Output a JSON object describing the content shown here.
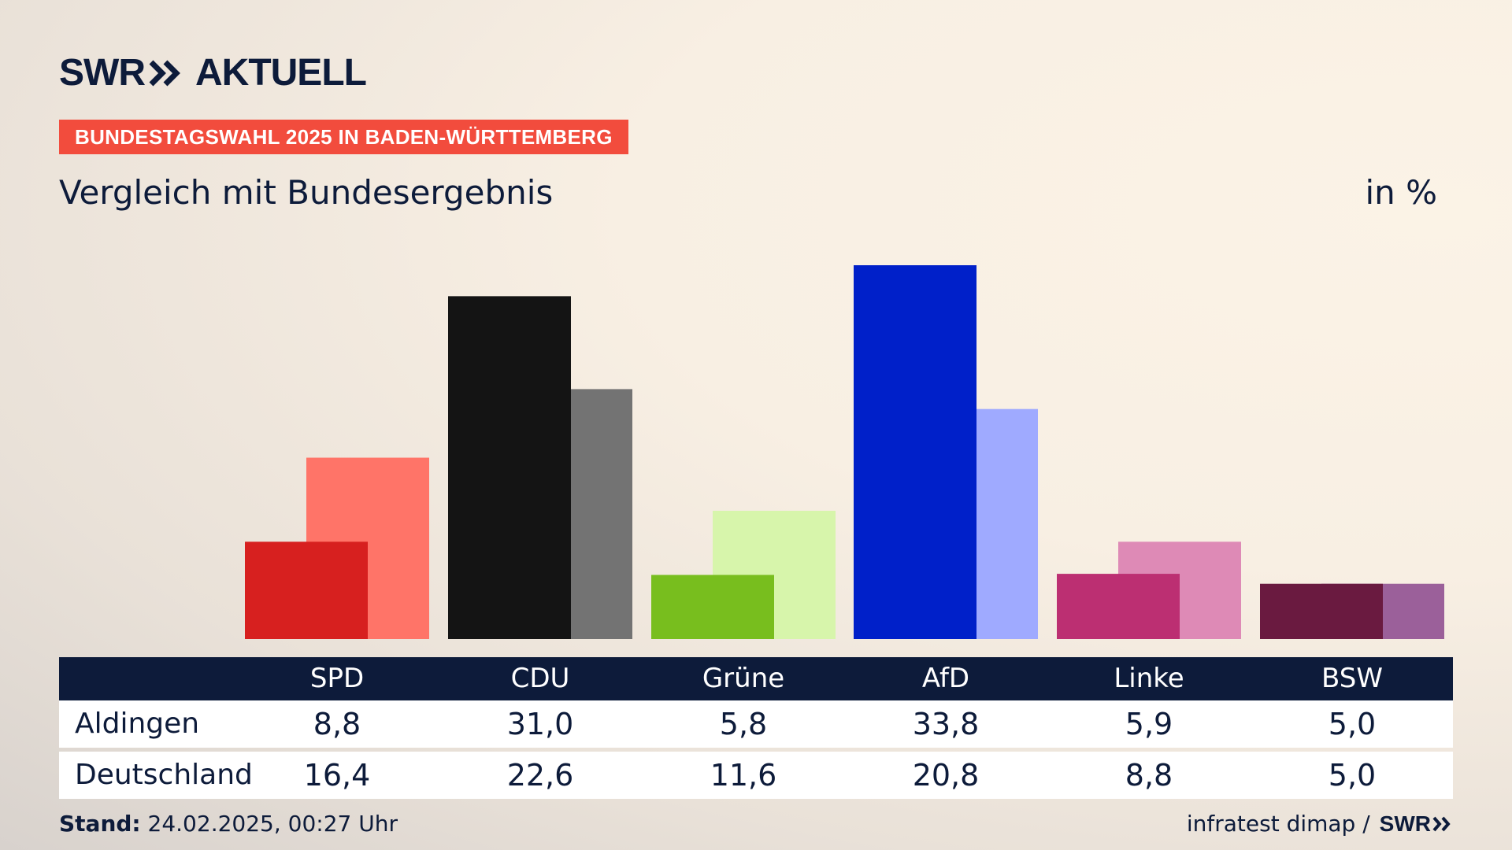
{
  "brand": {
    "logo_left": "SWR",
    "logo_right": "AKTUELL",
    "chevron_icon": "double-chevron-right-icon"
  },
  "kicker": "BUNDESTAGSWAHL 2025 IN BADEN-WÜRTTEMBERG",
  "subtitle": "Vergleich mit Bundesergebnis",
  "unit": "in %",
  "table": {
    "row_labels": [
      "Aldingen",
      "Deutschland"
    ]
  },
  "footer": {
    "stand_label": "Stand:",
    "stand_value": "24.02.2025, 00:27 Uhr",
    "source": "infratest dimap /",
    "source_logo": "SWR"
  },
  "colors": {
    "text": "#0d1b3a",
    "kicker_bg": "#f24c3d",
    "table_header_bg": "#0d1b3a"
  },
  "chart_data": {
    "type": "bar",
    "categories": [
      "SPD",
      "CDU",
      "Grüne",
      "AfD",
      "Linke",
      "BSW"
    ],
    "series": [
      {
        "name": "Aldingen",
        "values": [
          8.8,
          31.0,
          5.8,
          33.8,
          5.9,
          5.0
        ],
        "labels": [
          "8,8",
          "31,0",
          "5,8",
          "33,8",
          "5,9",
          "5,0"
        ],
        "colors": [
          "#d7201f",
          "#141414",
          "#78be1e",
          "#0020c9",
          "#bc2f72",
          "#6a1a40"
        ]
      },
      {
        "name": "Deutschland",
        "values": [
          16.4,
          22.6,
          11.6,
          20.8,
          8.8,
          5.0
        ],
        "labels": [
          "16,4",
          "22,6",
          "11,6",
          "20,8",
          "8,8",
          "5,0"
        ],
        "colors": [
          "#ff7468",
          "#737373",
          "#d7f5ab",
          "#9faaff",
          "#de8ab6",
          "#9b609a"
        ]
      }
    ],
    "ylim": [
      0,
      33.8
    ],
    "title": "Vergleich mit Bundesergebnis",
    "ylabel": "in %",
    "grid": false
  }
}
